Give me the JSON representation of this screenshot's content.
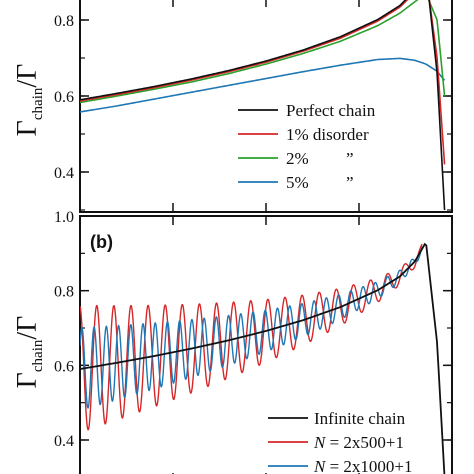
{
  "chart_data": [
    {
      "type": "line",
      "panel_label": "",
      "ylabel": {
        "main": "Γ",
        "sub": "chain",
        "tail": "/Γ"
      },
      "xlim": [
        0,
        1
      ],
      "ylim": [
        0.3,
        0.9
      ],
      "yticks": [
        "0.4",
        "0.6",
        "0.8"
      ],
      "ytick_values": [
        0.4,
        0.6,
        0.8
      ],
      "series": [
        {
          "name": "Perfect chain",
          "color": "#111111",
          "x": [
            0,
            0.1,
            0.2,
            0.3,
            0.4,
            0.5,
            0.6,
            0.7,
            0.8,
            0.86,
            0.9,
            0.93,
            0.96,
            0.98
          ],
          "y": [
            0.59,
            0.607,
            0.625,
            0.645,
            0.667,
            0.692,
            0.721,
            0.756,
            0.801,
            0.838,
            0.878,
            0.93,
            0.66,
            0.3
          ]
        },
        {
          "name": "1% disorder",
          "color": "#d62728",
          "x": [
            0,
            0.1,
            0.2,
            0.3,
            0.4,
            0.5,
            0.6,
            0.7,
            0.8,
            0.86,
            0.9,
            0.93,
            0.96,
            0.98
          ],
          "y": [
            0.587,
            0.604,
            0.622,
            0.642,
            0.664,
            0.689,
            0.718,
            0.752,
            0.797,
            0.834,
            0.872,
            0.92,
            0.7,
            0.42
          ]
        },
        {
          "name": "2%",
          "color": "#2ca02c",
          "x": [
            0,
            0.1,
            0.2,
            0.3,
            0.4,
            0.5,
            0.6,
            0.7,
            0.8,
            0.86,
            0.9,
            0.93,
            0.96,
            0.98
          ],
          "y": [
            0.583,
            0.6,
            0.618,
            0.637,
            0.659,
            0.684,
            0.712,
            0.744,
            0.785,
            0.818,
            0.848,
            0.87,
            0.8,
            0.6
          ]
        },
        {
          "name": "5%",
          "color": "#1f77b4",
          "x": [
            0,
            0.1,
            0.2,
            0.3,
            0.4,
            0.5,
            0.6,
            0.7,
            0.8,
            0.86,
            0.9,
            0.93,
            0.96,
            0.98
          ],
          "y": [
            0.558,
            0.574,
            0.592,
            0.61,
            0.628,
            0.646,
            0.664,
            0.681,
            0.696,
            0.699,
            0.694,
            0.684,
            0.665,
            0.641
          ]
        }
      ],
      "legend": [
        {
          "label": "Perfect chain",
          "series": 0
        },
        {
          "label": "1% disorder",
          "series": 1
        },
        {
          "label": "2%",
          "ditto": "”",
          "series": 2
        },
        {
          "label": "5%",
          "ditto": "”",
          "series": 3
        }
      ],
      "legend_position": "bottom-right"
    },
    {
      "type": "line",
      "panel_label": "(b)",
      "ylabel": {
        "main": "Γ",
        "sub": "chain",
        "tail": "/Γ"
      },
      "xlim": [
        0,
        1
      ],
      "ylim": [
        0.3,
        1.0
      ],
      "yticks": [
        "0.4",
        "0.6",
        "0.8",
        "1.0"
      ],
      "ytick_values": [
        0.4,
        0.6,
        0.8,
        1.0
      ],
      "infinite_chain": {
        "name": "Infinite chain",
        "color": "#111111",
        "x": [
          0,
          0.1,
          0.2,
          0.3,
          0.4,
          0.5,
          0.6,
          0.7,
          0.8,
          0.86,
          0.9,
          0.93,
          0.96,
          0.98
        ],
        "y": [
          0.59,
          0.607,
          0.625,
          0.645,
          0.667,
          0.692,
          0.721,
          0.756,
          0.801,
          0.838,
          0.878,
          0.93,
          0.66,
          0.3
        ]
      },
      "oscillating_series": [
        {
          "name": "N = 2x500+1",
          "N": "2x500+1",
          "color": "#d62728",
          "cycles": 20,
          "amplitude_start": 0.17,
          "amplitude_end": 0.012,
          "x_end": 0.92
        },
        {
          "name": "N = 2x1000+1",
          "N": "2x1000+1",
          "color": "#1f77b4",
          "cycles": 28,
          "amplitude_start": 0.11,
          "amplitude_end": 0.01,
          "x_end": 0.92
        }
      ],
      "legend": [
        {
          "label": "Infinite chain",
          "kind": "plain"
        },
        {
          "label": "N",
          "suffix": " = 2x500+1",
          "kind": "italicN"
        },
        {
          "label": "N",
          "suffix": " = 2x1000+1",
          "kind": "italicN"
        }
      ],
      "legend_position": "bottom-right"
    }
  ]
}
